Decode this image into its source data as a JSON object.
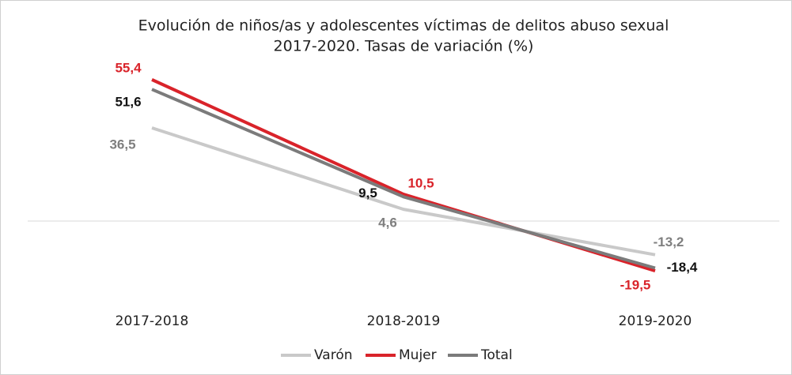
{
  "chart_data": {
    "type": "line",
    "title": [
      "Evolución de niños/as y adolescentes víctimas de delitos abuso sexual",
      "2017-2020. Tasas de variación (%)"
    ],
    "categories": [
      "2017-2018",
      "2018-2019",
      "2019-2020"
    ],
    "series": [
      {
        "name": "Varón",
        "color": "#c9c9c9",
        "values": [
          36.5,
          4.6,
          -13.2
        ],
        "value_labels": [
          "36,5",
          "4,6",
          "-13,2"
        ]
      },
      {
        "name": "Mujer",
        "color": "#d9232a",
        "values": [
          55.4,
          10.5,
          -19.5
        ],
        "value_labels": [
          "55,4",
          "10,5",
          "-19,5"
        ]
      },
      {
        "name": "Total",
        "color": "#7b7b7b",
        "values": [
          51.6,
          9.5,
          -18.4
        ],
        "value_labels": [
          "51,6",
          "9,5",
          "-18,4"
        ]
      }
    ],
    "ylim": [
      -30,
      60
    ],
    "legend": "bottom"
  }
}
